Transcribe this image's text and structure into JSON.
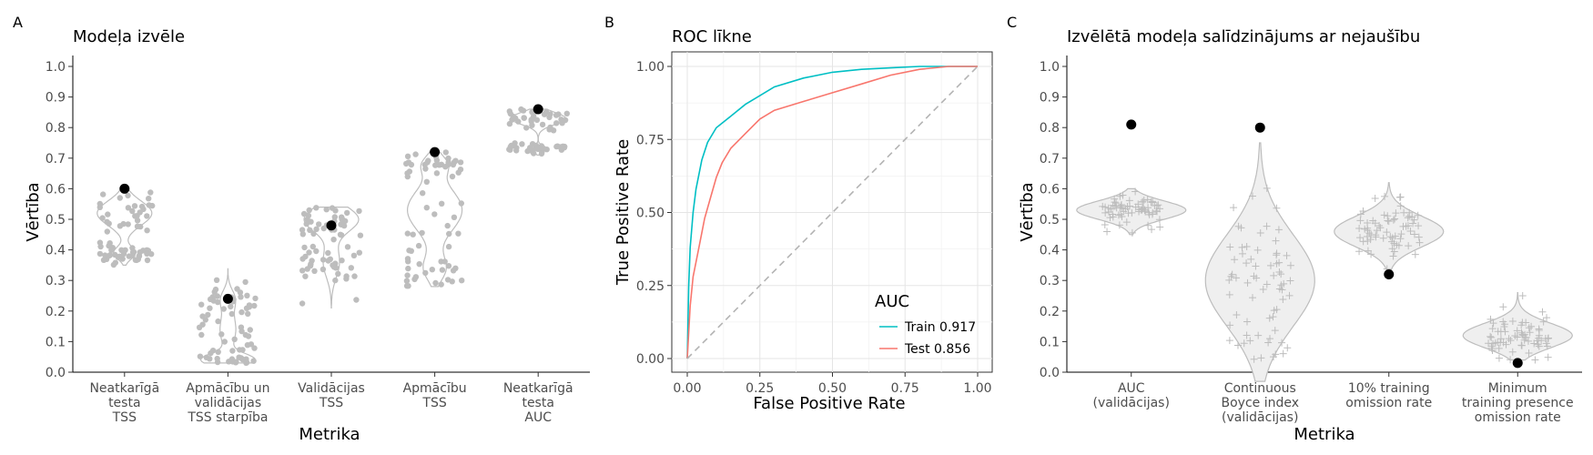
{
  "chart_data": [
    {
      "panel": "A",
      "type": "violin",
      "title": "Modeļa izvēle",
      "xlabel": "Metrika",
      "ylabel": "Vērtība",
      "ylim": [
        0,
        1
      ],
      "yticks": [
        0.0,
        0.1,
        0.2,
        0.3,
        0.4,
        0.5,
        0.6,
        0.7,
        0.8,
        0.9,
        1.0
      ],
      "categories": [
        [
          "Neatkarīgā",
          "testa",
          "TSS"
        ],
        [
          "Apmācību un",
          "validācijas",
          "TSS starpība"
        ],
        [
          "Validācijas",
          "TSS"
        ],
        [
          "Apmācību",
          "TSS"
        ],
        [
          "Neatkarīgā",
          "testa",
          "AUC"
        ]
      ],
      "selected": [
        0.6,
        0.24,
        0.48,
        0.72,
        0.86
      ],
      "distributions": [
        {
          "min": 0.35,
          "max": 0.6,
          "modes": [
            [
              0.52,
              0.04,
              1.0
            ],
            [
              0.39,
              0.02,
              0.4
            ]
          ]
        },
        {
          "min": 0.03,
          "max": 0.34,
          "modes": [
            [
              0.04,
              0.02,
              1.0
            ],
            [
              0.14,
              0.05,
              0.3
            ],
            [
              0.24,
              0.03,
              0.25
            ]
          ]
        },
        {
          "min": 0.21,
          "max": 0.54,
          "modes": [
            [
              0.5,
              0.04,
              1.0
            ],
            [
              0.36,
              0.05,
              0.3
            ]
          ]
        },
        {
          "min": 0.28,
          "max": 0.72,
          "modes": [
            [
              0.53,
              0.07,
              1.0
            ],
            [
              0.34,
              0.04,
              0.4
            ],
            [
              0.68,
              0.03,
              0.4
            ]
          ]
        },
        {
          "min": 0.71,
          "max": 0.86,
          "modes": [
            [
              0.83,
              0.02,
              1.0
            ],
            [
              0.73,
              0.01,
              0.3
            ]
          ]
        }
      ],
      "color": "#bebebe"
    },
    {
      "panel": "B",
      "type": "line",
      "title": "ROC līkne",
      "xlabel": "False Positive Rate",
      "ylabel": "True Positive Rate",
      "xlim": [
        0,
        1
      ],
      "ylim": [
        0,
        1
      ],
      "xticks": [
        "0.00",
        "0.25",
        "0.50",
        "0.75",
        "1.00"
      ],
      "yticks": [
        "0.00",
        "0.25",
        "0.50",
        "0.75",
        "1.00"
      ],
      "grid": true,
      "legend_title": "AUC",
      "legend_position": "bottom-right",
      "series": [
        {
          "name": "Train 0.917",
          "color": "#00bfc4",
          "x": [
            0,
            0.005,
            0.01,
            0.02,
            0.03,
            0.05,
            0.07,
            0.1,
            0.15,
            0.2,
            0.25,
            0.3,
            0.4,
            0.5,
            0.6,
            0.7,
            0.8,
            0.9,
            1.0
          ],
          "y": [
            0,
            0.25,
            0.38,
            0.5,
            0.58,
            0.68,
            0.74,
            0.79,
            0.83,
            0.87,
            0.9,
            0.93,
            0.96,
            0.98,
            0.99,
            0.995,
            1.0,
            1.0,
            1.0
          ]
        },
        {
          "name": "Test 0.856",
          "color": "#f8766d",
          "x": [
            0,
            0.01,
            0.02,
            0.04,
            0.06,
            0.08,
            0.1,
            0.12,
            0.15,
            0.2,
            0.25,
            0.3,
            0.4,
            0.5,
            0.6,
            0.7,
            0.8,
            0.9,
            1.0
          ],
          "y": [
            0,
            0.18,
            0.28,
            0.38,
            0.48,
            0.55,
            0.62,
            0.67,
            0.72,
            0.77,
            0.82,
            0.85,
            0.88,
            0.91,
            0.94,
            0.97,
            0.99,
            1.0,
            1.0
          ]
        },
        {
          "name": "",
          "color": "#b3b3b3",
          "dashed": true,
          "x": [
            0,
            1
          ],
          "y": [
            0,
            1
          ]
        }
      ]
    },
    {
      "panel": "C",
      "type": "violin",
      "title": "Izvēlētā modeļa salīdzinājums ar nejaušību",
      "xlabel": "Metrika",
      "ylabel": "Vērtība",
      "ylim": [
        0,
        1
      ],
      "yticks": [
        0.0,
        0.1,
        0.2,
        0.3,
        0.4,
        0.5,
        0.6,
        0.7,
        0.8,
        0.9,
        1.0
      ],
      "categories": [
        [
          "AUC",
          "(validācijas)"
        ],
        [
          "Continuous",
          "Boyce index",
          "(validācijas)"
        ],
        [
          "10% training",
          "omission rate"
        ],
        [
          "Minimum",
          "training presence",
          "omission rate"
        ]
      ],
      "selected": [
        0.81,
        0.8,
        0.32,
        0.03
      ],
      "distributions": [
        {
          "min": 0.45,
          "max": 0.6,
          "modes": [
            [
              0.53,
              0.03,
              1.0
            ]
          ]
        },
        {
          "min": -0.03,
          "max": 0.75,
          "modes": [
            [
              0.3,
              0.15,
              1.0
            ]
          ]
        },
        {
          "min": 0.31,
          "max": 0.62,
          "modes": [
            [
              0.46,
              0.05,
              1.0
            ]
          ]
        },
        {
          "min": 0.04,
          "max": 0.26,
          "modes": [
            [
              0.12,
              0.04,
              1.0
            ]
          ]
        }
      ],
      "color": "#bebebe"
    }
  ],
  "panels": {
    "a": {
      "letter": "A",
      "title": "Modeļa izvēle",
      "xlabel": "Metrika",
      "ylabel": "Vērtība"
    },
    "b": {
      "letter": "B",
      "title": "ROC līkne",
      "xlabel": "False Positive Rate",
      "ylabel": "True Positive Rate",
      "legend_title": "AUC",
      "legend_train": "Train 0.917",
      "legend_test": "Test 0.856"
    },
    "c": {
      "letter": "C",
      "title": "Izvēlētā modeļa salīdzinājums ar nejaušību",
      "xlabel": "Metrika",
      "ylabel": "Vērtība"
    }
  }
}
